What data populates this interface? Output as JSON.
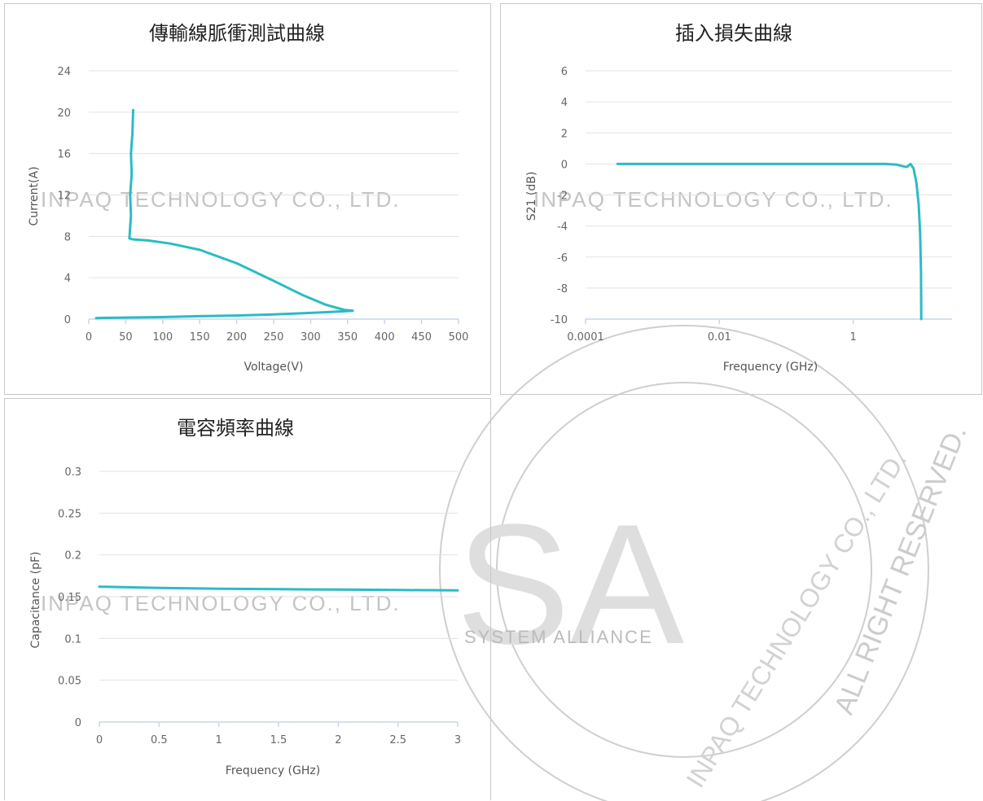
{
  "colors": {
    "series": "#2bbcc4",
    "grid": "#e3e3e3",
    "axis": "#c6d7ee",
    "border": "#c8c8c8",
    "watermark": "#c4c4c4"
  },
  "watermark": {
    "text_lines": [
      "INPAQ TECHNOLOGY CO., LTD.",
      "INPAQ TECHNOLOGY CO., LTD.",
      "INPAQ TECHNOLOGY CO., LTD."
    ],
    "alliance_text": "SYSTEM ALLIANCE",
    "big_letters": "SA",
    "rights_text": "ALL RIGHT RESERVED.",
    "seal_text": "INPAQ TECHNOLOGY CO., LTD."
  },
  "chart_data": [
    {
      "type": "line",
      "title": "傳輸線脈衝測試曲線",
      "xlabel": "Voltage(V)",
      "ylabel": "Current(A)",
      "xlim": [
        0,
        500
      ],
      "ylim": [
        0,
        24
      ],
      "x_ticks": [
        0,
        50,
        100,
        150,
        200,
        250,
        300,
        350,
        400,
        450,
        500
      ],
      "y_ticks": [
        0,
        4,
        8,
        12,
        16,
        20,
        24
      ],
      "x_tick_labels": [
        "0",
        "50",
        "100",
        "150",
        "200",
        "250",
        "300",
        "350",
        "400",
        "450",
        "500"
      ],
      "y_tick_labels": [
        "0",
        "4",
        "8",
        "12",
        "16",
        "20",
        "24"
      ],
      "grid": true,
      "x": [
        10,
        50,
        100,
        150,
        200,
        250,
        300,
        330,
        350,
        357,
        345,
        320,
        290,
        250,
        200,
        150,
        110,
        80,
        60,
        55,
        57,
        56,
        58,
        57,
        59,
        60
      ],
      "y": [
        0.1,
        0.15,
        0.2,
        0.28,
        0.35,
        0.45,
        0.6,
        0.7,
        0.78,
        0.8,
        0.9,
        1.4,
        2.3,
        3.7,
        5.4,
        6.7,
        7.3,
        7.6,
        7.7,
        7.8,
        10,
        12,
        14,
        16,
        18,
        20.2
      ]
    },
    {
      "type": "line",
      "title": "插入損失曲線",
      "xlabel": "Frequency (GHz)",
      "ylabel": "S21 (dB)",
      "x_scale": "log",
      "xlim": [
        0.0001,
        30
      ],
      "ylim": [
        -10,
        6
      ],
      "x_ticks": [
        0.0001,
        0.01,
        1
      ],
      "y_ticks": [
        -10,
        -8,
        -6,
        -4,
        -2,
        0,
        2,
        4,
        6
      ],
      "x_tick_labels": [
        "0.0001",
        "0.01",
        "1"
      ],
      "y_tick_labels": [
        "-10",
        "-8",
        "-6",
        "-4",
        "-2",
        "0",
        "2",
        "4",
        "6"
      ],
      "grid": true,
      "x": [
        0.0003,
        0.001,
        0.01,
        0.1,
        1,
        3,
        4.5,
        5.5,
        6.3,
        7.2,
        8,
        8.8,
        9.5,
        10,
        10.3,
        10.4
      ],
      "y": [
        0,
        0,
        0,
        0,
        0,
        0,
        -0.05,
        -0.15,
        -0.2,
        0,
        -0.3,
        -1.2,
        -2.6,
        -4.5,
        -7,
        -10
      ]
    },
    {
      "type": "line",
      "title": "電容頻率曲線",
      "xlabel": "Frequency (GHz)",
      "ylabel": "Capacitance (pF)",
      "xlim": [
        0,
        3
      ],
      "ylim": [
        0,
        0.3
      ],
      "x_ticks": [
        0,
        0.5,
        1,
        1.5,
        2,
        2.5,
        3
      ],
      "y_ticks": [
        0,
        0.05,
        0.1,
        0.15,
        0.2,
        0.25,
        0.3
      ],
      "x_tick_labels": [
        "0",
        "0.5",
        "1",
        "1.5",
        "2",
        "2.5",
        "3"
      ],
      "y_tick_labels": [
        "0",
        "0.05",
        "0.1",
        "0.15",
        "0.2",
        "0.25",
        "0.3"
      ],
      "grid": true,
      "x": [
        0,
        0.5,
        1,
        1.5,
        2,
        2.5,
        3
      ],
      "y": [
        0.162,
        0.1605,
        0.1595,
        0.159,
        0.1585,
        0.158,
        0.1575
      ]
    }
  ]
}
